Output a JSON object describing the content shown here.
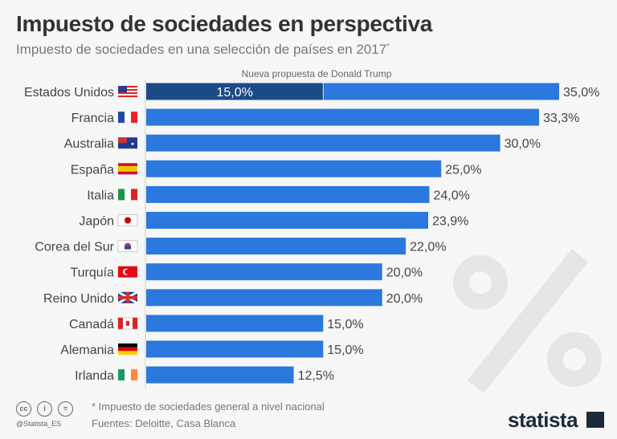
{
  "title": "Impuesto de sociedades en perspectiva",
  "subtitle": "Impuesto de sociedades en una selección de países en 2017",
  "subtitle_mark": "*",
  "chart_data": {
    "type": "bar",
    "orientation": "horizontal",
    "categories": [
      "Estados Unidos",
      "Francia",
      "Australia",
      "España",
      "Italia",
      "Japón",
      "Corea del Sur",
      "Turquía",
      "Reino Unido",
      "Canadá",
      "Alemania",
      "Irlanda"
    ],
    "values": [
      35.0,
      33.3,
      30.0,
      25.0,
      24.0,
      23.9,
      22.0,
      20.0,
      20.0,
      15.0,
      15.0,
      12.5
    ],
    "value_labels": [
      "35,0%",
      "33,3%",
      "30,0%",
      "25,0%",
      "24,0%",
      "23,9%",
      "22,0%",
      "20,0%",
      "20,0%",
      "15,0%",
      "15,0%",
      "12,5%"
    ],
    "annotation": {
      "category": "Estados Unidos",
      "value": 15.0,
      "value_label": "15,0%",
      "label": "Nueva propuesta de Donald Trump"
    },
    "xlim": [
      0,
      35
    ],
    "grid": false,
    "colors": {
      "bar": "#2b78de",
      "highlight": "#1c4a87",
      "watermark": "#e6e6e6"
    },
    "flags": [
      "us-flag-icon",
      "france-flag-icon",
      "australia-flag-icon",
      "spain-flag-icon",
      "italy-flag-icon",
      "japan-flag-icon",
      "korea-flag-icon",
      "turkey-flag-icon",
      "uk-flag-icon",
      "canada-flag-icon",
      "germany-flag-icon",
      "ireland-flag-icon"
    ]
  },
  "footer": {
    "note": "* Impuesto de sociedades general a nivel nacional",
    "sources": "Fuentes: Deloitte, Casa Blanca",
    "handle": "@Statista_ES",
    "cc_icons": [
      "cc",
      "i",
      "="
    ],
    "logo": "statista"
  }
}
